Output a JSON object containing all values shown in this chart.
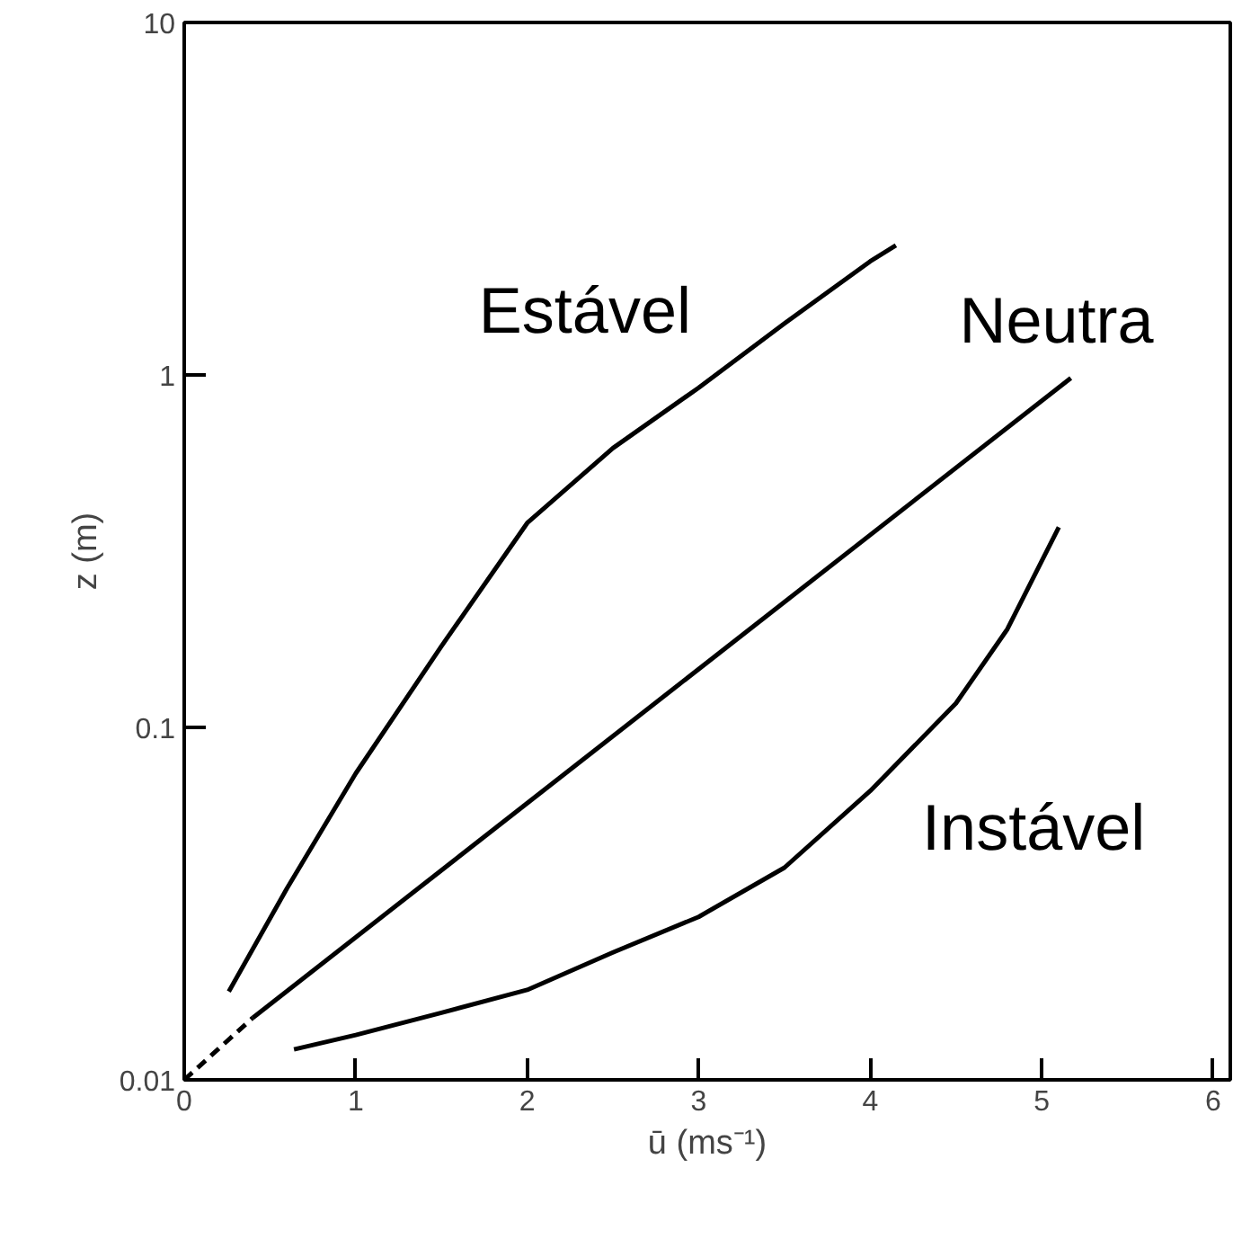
{
  "chart_data": {
    "type": "line",
    "xlabel": "ū (ms⁻¹)",
    "ylabel": "z (m)",
    "log": "y",
    "xlim": [
      0,
      6.1
    ],
    "ylim": [
      0.01,
      10
    ],
    "xticks": [
      0,
      1,
      2,
      3,
      4,
      5,
      6
    ],
    "yticks": [
      0.01,
      0.1,
      1,
      10
    ],
    "grid": false,
    "line_style": "solid",
    "series": [
      {
        "name": "Estável",
        "color": "#000000",
        "x": [
          0.26,
          0.6,
          1,
          1.5,
          2,
          2.5,
          3,
          3.5,
          4,
          4.15
        ],
        "values": [
          0.0178,
          0.035,
          0.074,
          0.17,
          0.38,
          0.62,
          0.92,
          1.4,
          2.1,
          2.33
        ]
      },
      {
        "name": "Neutra",
        "color": "#000000",
        "x": [
          0.4,
          5.17
        ],
        "values": [
          0.015,
          0.98
        ]
      },
      {
        "color": "#000000",
        "line_style": "dashed",
        "x": [
          0,
          0.4
        ],
        "values": [
          0.01,
          0.015
        ]
      },
      {
        "name": "Instável",
        "color": "#000000",
        "x": [
          0.64,
          1,
          1.5,
          2,
          2.5,
          3,
          3.5,
          4,
          4.5,
          4.8,
          5.1
        ],
        "values": [
          0.0122,
          0.0134,
          0.0155,
          0.018,
          0.023,
          0.029,
          0.04,
          0.066,
          0.117,
          0.19,
          0.37
        ]
      }
    ]
  }
}
